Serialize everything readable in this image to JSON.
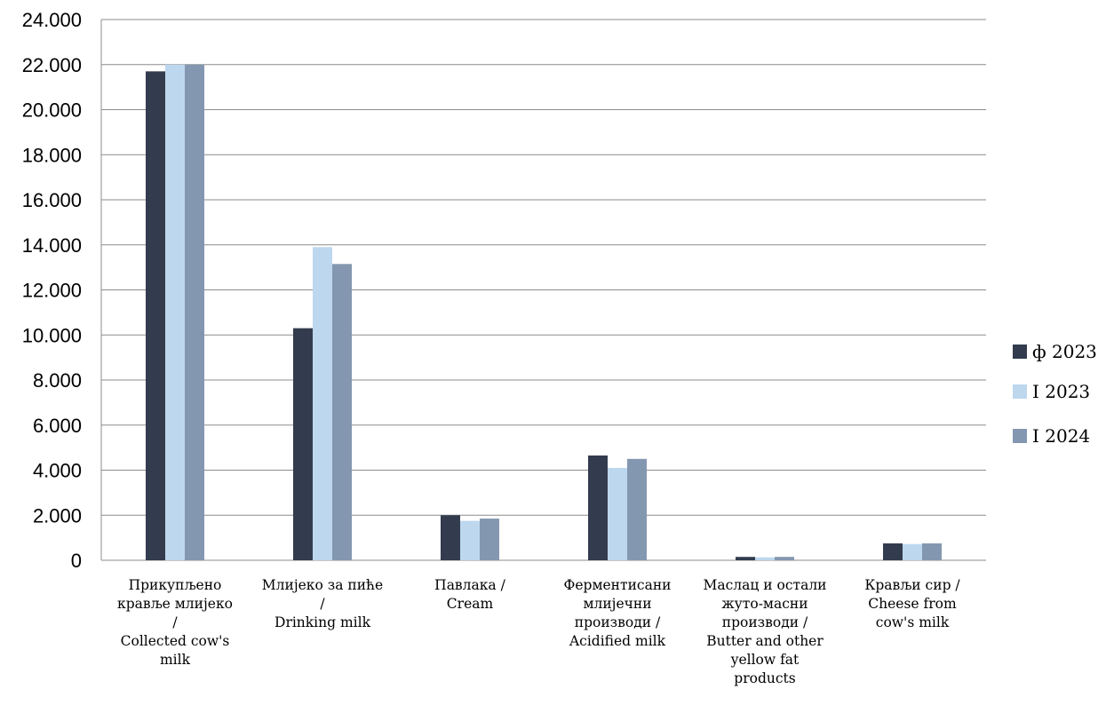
{
  "chart_data": {
    "type": "bar",
    "title": "",
    "xlabel": "",
    "ylabel": "",
    "ylim": [
      0,
      24000
    ],
    "y_ticks": [
      "0",
      "2.000",
      "4.000",
      "6.000",
      "8.000",
      "10.000",
      "12.000",
      "14.000",
      "16.000",
      "18.000",
      "20.000",
      "22.000",
      "24.000"
    ],
    "y_tick_values": [
      0,
      2000,
      4000,
      6000,
      8000,
      10000,
      12000,
      14000,
      16000,
      18000,
      20000,
      22000,
      24000
    ],
    "grid": true,
    "legend_position": "right",
    "categories": [
      [
        "Прикупљено",
        "кравље млијеко",
        "/",
        "Collected cow's",
        "milk"
      ],
      [
        "Млијеко за пиће",
        "/",
        "Drinking milk"
      ],
      [
        "Павлака /",
        "Cream"
      ],
      [
        "Ферментисани",
        "млијечни",
        "производи /",
        "Acidified milk"
      ],
      [
        "Маслац и остали",
        "жуто-масни",
        "производи /",
        "Butter and other",
        "yellow fat",
        "products"
      ],
      [
        "Крављи сир /",
        "Cheese from",
        "cow's milk"
      ]
    ],
    "series": [
      {
        "name": "ф 2023",
        "color": "#333c4e",
        "values": [
          21700,
          10300,
          2000,
          4650,
          150,
          750
        ]
      },
      {
        "name": "I 2023",
        "color": "#bdd7ee",
        "values": [
          22000,
          13900,
          1750,
          4100,
          130,
          720
        ]
      },
      {
        "name": "I 2024",
        "color": "#8497b0",
        "values": [
          22000,
          13150,
          1850,
          4500,
          150,
          750
        ]
      }
    ]
  }
}
